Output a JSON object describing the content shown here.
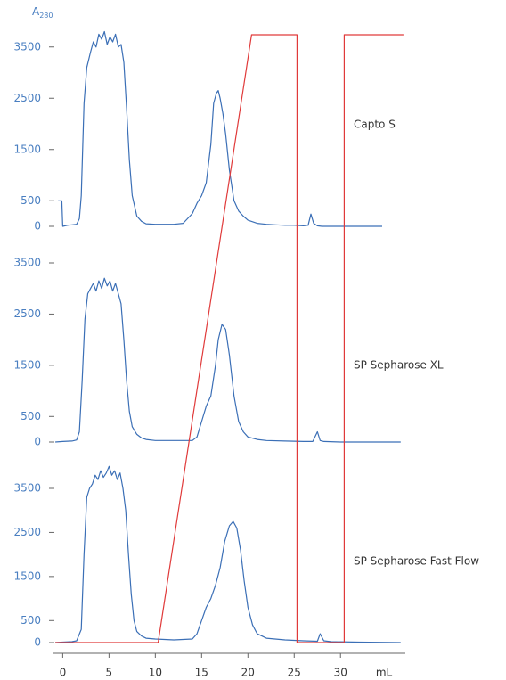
{
  "chart_data": [
    {
      "type": "line",
      "title": "Capto S",
      "y_label": "A",
      "y_label_sub": "280",
      "xlim": [
        -1,
        37
      ],
      "ylim": [
        0,
        4000
      ],
      "yticks": [
        0,
        500,
        1500,
        2500,
        3500
      ],
      "x": [
        -0.5,
        -0.1,
        0,
        0.5,
        1,
        1.5,
        1.8,
        2,
        2.3,
        2.6,
        3,
        3.3,
        3.6,
        3.9,
        4.2,
        4.5,
        4.8,
        5.1,
        5.4,
        5.7,
        6,
        6.3,
        6.6,
        6.9,
        7.2,
        7.5,
        8,
        8.5,
        9,
        10,
        11,
        12,
        13,
        14,
        14.5,
        15,
        15.5,
        16,
        16.3,
        16.6,
        16.8,
        17,
        17.3,
        17.6,
        18,
        18.5,
        19,
        19.5,
        20,
        21,
        22,
        23,
        24,
        25,
        26,
        26.5,
        26.8,
        27.1,
        27.5,
        28,
        30,
        32,
        34.5
      ],
      "series": [
        {
          "color": "#3b6fb6",
          "values": [
            500,
            500,
            0,
            20,
            30,
            40,
            150,
            600,
            2400,
            3100,
            3400,
            3600,
            3500,
            3750,
            3650,
            3800,
            3550,
            3700,
            3600,
            3750,
            3500,
            3550,
            3200,
            2300,
            1300,
            600,
            200,
            100,
            50,
            40,
            40,
            40,
            60,
            250,
            450,
            600,
            850,
            1600,
            2400,
            2600,
            2650,
            2500,
            2200,
            1800,
            1100,
            500,
            300,
            200,
            120,
            60,
            40,
            30,
            20,
            20,
            10,
            20,
            240,
            60,
            10,
            0,
            0,
            0,
            0
          ]
        }
      ]
    },
    {
      "type": "line",
      "title": "SP Sepharose XL",
      "xlim": [
        -1,
        37
      ],
      "ylim": [
        0,
        3500
      ],
      "yticks": [
        0,
        500,
        1500,
        2500,
        3500
      ],
      "x": [
        -0.8,
        0,
        1,
        1.5,
        1.8,
        2.1,
        2.4,
        2.7,
        3,
        3.3,
        3.6,
        3.9,
        4.2,
        4.5,
        4.8,
        5.1,
        5.4,
        5.7,
        6,
        6.3,
        6.6,
        6.9,
        7.2,
        7.5,
        8,
        8.5,
        9,
        10,
        12,
        14,
        14.5,
        15,
        15.5,
        16,
        16.5,
        16.8,
        17.2,
        17.6,
        18,
        18.5,
        19,
        19.5,
        20,
        21,
        22,
        24,
        26,
        27,
        27.5,
        27.8,
        28.2,
        30,
        33,
        36.5
      ],
      "series": [
        {
          "color": "#3b6fb6",
          "values": [
            0,
            10,
            20,
            40,
            200,
            1200,
            2400,
            2900,
            3000,
            3100,
            2950,
            3150,
            3000,
            3200,
            3050,
            3150,
            2950,
            3100,
            2900,
            2700,
            2000,
            1200,
            600,
            300,
            150,
            80,
            50,
            30,
            30,
            30,
            100,
            400,
            700,
            900,
            1500,
            2000,
            2300,
            2200,
            1700,
            900,
            400,
            200,
            100,
            50,
            30,
            20,
            10,
            10,
            200,
            30,
            10,
            0,
            0,
            0
          ]
        }
      ]
    },
    {
      "type": "line",
      "title": "SP Sepharose Fast Flow",
      "xlim": [
        -1,
        37
      ],
      "ylim": [
        0,
        3500
      ],
      "yticks": [
        0,
        500,
        1500,
        2500,
        3500
      ],
      "xticks": [
        0,
        5,
        10,
        15,
        20,
        25,
        30
      ],
      "x_label": "mL",
      "y2lim": [
        0,
        100
      ],
      "x": [
        -0.8,
        0,
        1,
        1.5,
        2,
        2.3,
        2.6,
        2.9,
        3.2,
        3.5,
        3.8,
        4.1,
        4.4,
        4.7,
        5,
        5.3,
        5.6,
        5.9,
        6.2,
        6.5,
        6.8,
        7.1,
        7.4,
        7.7,
        8,
        8.5,
        9,
        10,
        12,
        14,
        14.5,
        15,
        15.5,
        16,
        16.5,
        17,
        17.5,
        18,
        18.4,
        18.8,
        19.2,
        19.6,
        20,
        20.5,
        21,
        22,
        24,
        26,
        27.5,
        27.8,
        28.2,
        29,
        32,
        36.5
      ],
      "series": [
        {
          "color": "#3b6fb6",
          "values": [
            0,
            10,
            20,
            40,
            300,
            2000,
            3300,
            3500,
            3600,
            3800,
            3700,
            3900,
            3750,
            3850,
            4000,
            3800,
            3900,
            3700,
            3850,
            3500,
            3000,
            2000,
            1100,
            500,
            250,
            150,
            100,
            80,
            60,
            80,
            200,
            500,
            800,
            1000,
            1300,
            1700,
            2300,
            2650,
            2750,
            2600,
            2100,
            1400,
            800,
            400,
            200,
            100,
            60,
            40,
            30,
            200,
            40,
            20,
            10,
            0
          ]
        },
        {
          "color": "#e03a3a",
          "axis": "y2",
          "x": [
            -0.8,
            10.3,
            20.4,
            25.3,
            25.3,
            30.4,
            30.4,
            36.8
          ],
          "values": [
            0,
            0,
            100,
            100,
            0,
            0,
            100,
            100
          ]
        }
      ]
    }
  ]
}
